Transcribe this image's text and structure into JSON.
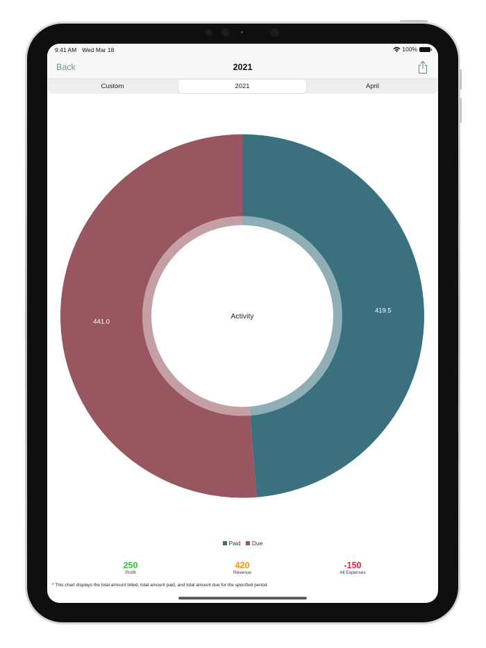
{
  "status_bar": {
    "time": "9:41 AM",
    "date": "Wed Mar 18",
    "battery": "100%"
  },
  "nav": {
    "back_label": "Back",
    "title": "2021",
    "share_icon": "share-icon"
  },
  "segments": [
    {
      "label": "Custom",
      "selected": false
    },
    {
      "label": "2021",
      "selected": true
    },
    {
      "label": "April",
      "selected": false
    }
  ],
  "chart_data": {
    "type": "pie",
    "variant": "donut",
    "center_label": "Activity",
    "categories": [
      "Paid",
      "Due"
    ],
    "values": [
      419.5,
      441.0
    ],
    "value_labels": [
      "419.5",
      "441.0"
    ],
    "colors": [
      "#3b717e",
      "#975660"
    ],
    "legend": [
      "Paid",
      "Due"
    ],
    "legend_position": "bottom"
  },
  "metrics": [
    {
      "value": "250",
      "label": "Profit",
      "color": "#33c43a"
    },
    {
      "value": "420",
      "label": "Revenue",
      "color": "#ff9500"
    },
    {
      "value": "-150",
      "label": "All Expenses",
      "color": "#ea1c4c"
    }
  ],
  "footnote": "* This chart displays the total amount billed, total amount paid, and total amount due for the specified period."
}
